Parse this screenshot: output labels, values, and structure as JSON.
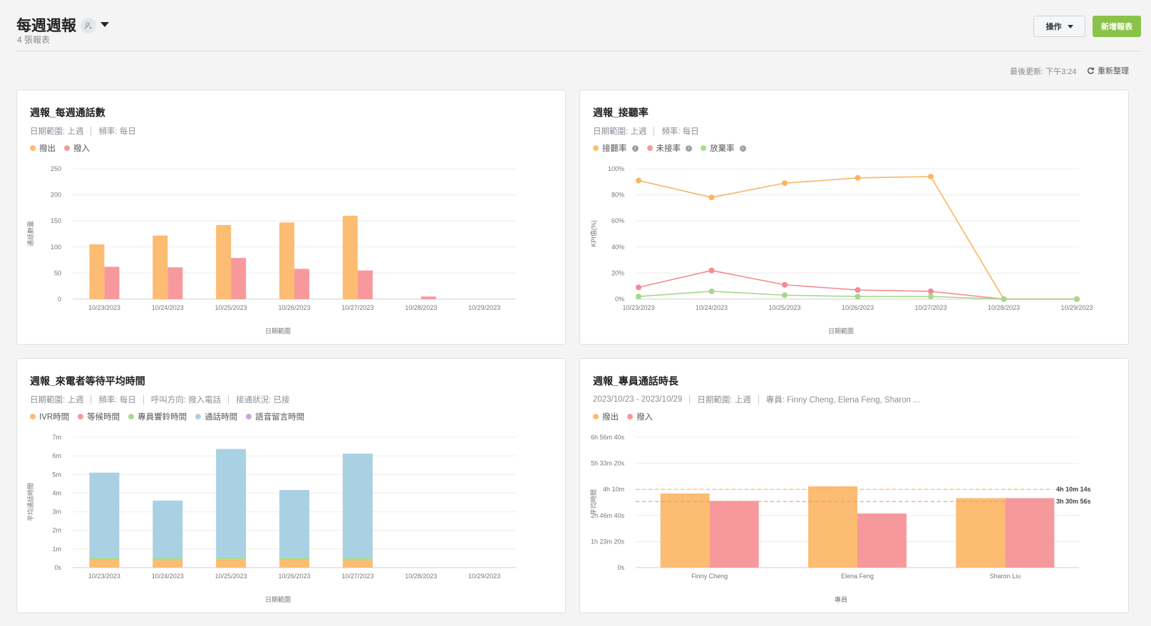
{
  "header": {
    "title": "每週週報",
    "subtitle": "4 張報表",
    "action_label": "操作",
    "new_label": "新增報表",
    "last_update": "最後更新: 下午3:24",
    "refresh_label": "重新整理"
  },
  "colors": {
    "orange": "#fcbc72",
    "pink": "#f7999c",
    "green": "#a8dc8f",
    "blue": "#a9d1e3",
    "purple": "#c9a8e0",
    "line_orange": "#f9b564",
    "line_pink": "#f28b93",
    "line_green": "#a5d98a",
    "accent_green": "#8bc34a"
  },
  "cards": [
    {
      "title": "週報_每週通話數",
      "meta": [
        "日期範圍: 上週",
        "頻率: 每日"
      ],
      "legend": [
        {
          "label": "撥出",
          "color": "#fcbc72"
        },
        {
          "label": "撥入",
          "color": "#f7999c"
        }
      ],
      "chart_data": {
        "type": "bar",
        "categories": [
          "10/23/2023",
          "10/24/2023",
          "10/25/2023",
          "10/26/2023",
          "10/27/2023",
          "10/28/2023",
          "10/29/2023"
        ],
        "series": [
          {
            "name": "撥出",
            "values": [
              105,
              122,
              142,
              147,
              160,
              0,
              0
            ]
          },
          {
            "name": "撥入",
            "values": [
              62,
              61,
              79,
              58,
              55,
              5,
              0
            ]
          }
        ],
        "yticks": [
          "0",
          "50",
          "100",
          "150",
          "200",
          "250"
        ],
        "ylim": [
          0,
          250
        ],
        "xlabel": "日期範圍",
        "ylabel": "通話數量",
        "grid": true
      }
    },
    {
      "title": "週報_接聽率",
      "meta": [
        "日期範圍: 上週",
        "頻率: 每日"
      ],
      "legend": [
        {
          "label": "接聽率",
          "color": "#fcbc72",
          "info": "i"
        },
        {
          "label": "未接率",
          "color": "#f7999c",
          "info": "i"
        },
        {
          "label": "放棄率",
          "color": "#a8dc8f",
          "info": "i"
        }
      ],
      "chart_data": {
        "type": "line",
        "categories": [
          "10/23/2023",
          "10/24/2023",
          "10/25/2023",
          "10/26/2023",
          "10/27/2023",
          "10/28/2023",
          "10/29/2023"
        ],
        "series": [
          {
            "name": "接聽率",
            "values": [
              91,
              78,
              89,
              93,
              94,
              0,
              0
            ]
          },
          {
            "name": "未接率",
            "values": [
              9,
              22,
              11,
              7,
              6,
              0,
              0
            ]
          },
          {
            "name": "放棄率",
            "values": [
              2,
              6,
              3,
              2,
              2,
              0,
              0
            ]
          }
        ],
        "yticks": [
          "0%",
          "20%",
          "40%",
          "60%",
          "80%",
          "100%"
        ],
        "ylim": [
          0,
          100
        ],
        "xlabel": "日期範圍",
        "ylabel": "KPI值(%)",
        "grid": true
      }
    },
    {
      "title": "週報_來電者等待平均時間",
      "meta": [
        "日期範圍: 上週",
        "頻率: 每日",
        "呼叫方向: 撥入電話",
        "接通狀況: 已接"
      ],
      "legend": [
        {
          "label": "IVR時間",
          "color": "#fcbc72"
        },
        {
          "label": "等候時間",
          "color": "#f7999c"
        },
        {
          "label": "專員響鈴時間",
          "color": "#a8dc8f"
        },
        {
          "label": "通話時間",
          "color": "#a9d1e3"
        },
        {
          "label": "語音留言時間",
          "color": "#c9a8e0"
        }
      ],
      "chart_data": {
        "type": "bar",
        "stacked": true,
        "categories": [
          "10/23/2023",
          "10/24/2023",
          "10/25/2023",
          "10/26/2023",
          "10/27/2023",
          "10/28/2023",
          "10/29/2023"
        ],
        "series": [
          {
            "name": "IVR時間",
            "values": [
              0.42,
              0.4,
              0.45,
              0.42,
              0.4,
              0,
              0
            ]
          },
          {
            "name": "等候時間",
            "values": [
              0,
              0,
              0,
              0,
              0,
              0,
              0
            ]
          },
          {
            "name": "專員響鈴時間",
            "values": [
              0.12,
              0.12,
              0.1,
              0.12,
              0.12,
              0,
              0
            ]
          },
          {
            "name": "通話時間",
            "values": [
              4.56,
              3.08,
              5.82,
              3.63,
              5.6,
              0,
              0
            ]
          },
          {
            "name": "語音留言時間",
            "values": [
              0,
              0,
              0,
              0,
              0,
              0,
              0
            ]
          }
        ],
        "yticks": [
          "0s",
          "1m",
          "2m",
          "3m",
          "4m",
          "5m",
          "6m",
          "7m"
        ],
        "ylim": [
          0,
          7
        ],
        "xlabel": "日期範圍",
        "ylabel": "平均通話時間",
        "grid": true
      }
    },
    {
      "title": "週報_專員通話時長",
      "meta": [
        "2023/10/23 - 2023/10/29",
        "日期範圍: 上週",
        "專員: Finny Cheng, Elena Feng, Sharon ..."
      ],
      "legend": [
        {
          "label": "撥出",
          "color": "#fcbc72"
        },
        {
          "label": "撥入",
          "color": "#f7999c"
        }
      ],
      "chart_data": {
        "type": "bar",
        "categories": [
          "Finny Cheng",
          "Elena Feng",
          "Sharon Liu"
        ],
        "series": [
          {
            "name": "撥出",
            "values": [
              3.95,
              4.33,
              3.7
            ]
          },
          {
            "name": "撥入",
            "values": [
              3.55,
              2.88,
              3.7
            ]
          }
        ],
        "yticks": [
          "0s",
          "1h 23m 20s",
          "2h 46m 40s",
          "4h 10m",
          "5h 33m 20s",
          "6h 56m 40s"
        ],
        "ylim": [
          0,
          6.94
        ],
        "reference_lines": [
          {
            "label": "4h 10m 14s",
            "value": 4.17,
            "color": "#f9b564"
          },
          {
            "label": "3h 30m 56s",
            "value": 3.52,
            "color": "#f28b93"
          }
        ],
        "xlabel": "專員",
        "ylabel": "平均時間",
        "grid": true
      }
    }
  ]
}
